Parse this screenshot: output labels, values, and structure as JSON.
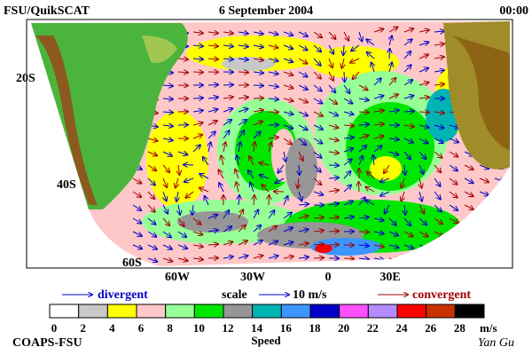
{
  "header": {
    "left": "FSU/QuikSCAT",
    "date": "6 September 2004",
    "time": "00:00"
  },
  "latitude_labels": [
    "20S",
    "40S",
    "60S"
  ],
  "longitude_labels": [
    "60W",
    "30W",
    "0",
    "30E"
  ],
  "legend": {
    "divergent": "divergent",
    "scale": "scale",
    "scale_value": "10 m/s",
    "convergent": "convergent"
  },
  "colorbar": {
    "ticks": [
      0,
      2,
      4,
      6,
      8,
      10,
      12,
      14,
      16,
      18,
      20,
      22,
      24,
      26,
      28
    ],
    "unit": "m/s",
    "label": "Speed",
    "colors": [
      "#ffffff",
      "#c8c8c8",
      "#ffff00",
      "#ffc8c8",
      "#96ff96",
      "#00e600",
      "#969696",
      "#00b4b4",
      "#3c96ff",
      "#0000c8",
      "#ff50ff",
      "#b48cff",
      "#ff0000",
      "#c83200",
      "#000000"
    ]
  },
  "footer": {
    "credit": "COAPS-FSU",
    "author": "Yan Gu"
  }
}
